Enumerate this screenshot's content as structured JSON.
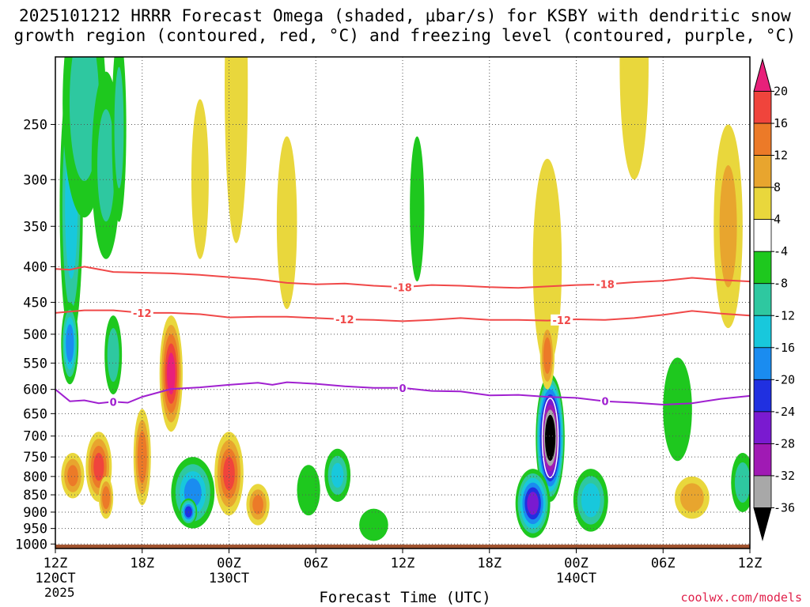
{
  "chart_data": {
    "type": "heatmap",
    "title_line1": "2025101212 HRRR Forecast Omega (shaded, μbar/s) for KSBY with dendritic snow",
    "title_line2": "growth region (contoured, red, °C) and freezing level (contoured, purple, °C)",
    "xlabel": "Forecast Time (UTC)",
    "ylabel": "",
    "x_ticks": [
      "12Z",
      "18Z",
      "00Z",
      "06Z",
      "12Z",
      "18Z",
      "00Z",
      "06Z",
      "12Z"
    ],
    "x_date_labels": [
      {
        "tick_index": 0,
        "label": "120CT"
      },
      {
        "tick_index": 2,
        "label": "130CT"
      },
      {
        "tick_index": 6,
        "label": "140CT"
      }
    ],
    "year_label": "2025",
    "x_range_hours": [
      0,
      48
    ],
    "y_ticks": [
      250,
      300,
      350,
      400,
      450,
      500,
      550,
      600,
      650,
      700,
      750,
      800,
      850,
      900,
      950,
      1000
    ],
    "y_range_hPa": [
      1015,
      200
    ],
    "colorbar": {
      "units": "μbar/s",
      "labels": [
        "20",
        "16",
        "12",
        "8",
        "4",
        "-4",
        "-8",
        "-12",
        "-16",
        "-20",
        "-24",
        "-28",
        "-32",
        "-36"
      ],
      "bins": [
        {
          "range": [
            20,
            99
          ],
          "color": "#e8207a"
        },
        {
          "range": [
            16,
            20
          ],
          "color": "#f0443c"
        },
        {
          "range": [
            12,
            16
          ],
          "color": "#ec7a28"
        },
        {
          "range": [
            8,
            12
          ],
          "color": "#e8a52e"
        },
        {
          "range": [
            4,
            8
          ],
          "color": "#e9d73c"
        },
        {
          "range": [
            -4,
            4
          ],
          "color": "#ffffff"
        },
        {
          "range": [
            -8,
            -4
          ],
          "color": "#1ec81e"
        },
        {
          "range": [
            -12,
            -8
          ],
          "color": "#2ec8a0"
        },
        {
          "range": [
            -16,
            -12
          ],
          "color": "#18c8dc"
        },
        {
          "range": [
            -20,
            -16
          ],
          "color": "#1a8cf0"
        },
        {
          "range": [
            -24,
            -20
          ],
          "color": "#2030e0"
        },
        {
          "range": [
            -28,
            -24
          ],
          "color": "#7a1ad0"
        },
        {
          "range": [
            -32,
            -28
          ],
          "color": "#a01ab4"
        },
        {
          "range": [
            -36,
            -32
          ],
          "color": "#a8a8a8"
        },
        {
          "range": [
            -99,
            -36
          ],
          "color": "#000000"
        }
      ]
    },
    "contours": [
      {
        "name": "-18 C isotherm",
        "label": "-18",
        "color": "#f04848",
        "points": [
          [
            0,
            403
          ],
          [
            1,
            404
          ],
          [
            2,
            400
          ],
          [
            4,
            407
          ],
          [
            6,
            408
          ],
          [
            8,
            409
          ],
          [
            10,
            411
          ],
          [
            12,
            414
          ],
          [
            14,
            417
          ],
          [
            16,
            422
          ],
          [
            18,
            424
          ],
          [
            20,
            423
          ],
          [
            22,
            426
          ],
          [
            24,
            428
          ],
          [
            26,
            425
          ],
          [
            28,
            426
          ],
          [
            30,
            428
          ],
          [
            32,
            429
          ],
          [
            34,
            427
          ],
          [
            36,
            425
          ],
          [
            38,
            424
          ],
          [
            40,
            421
          ],
          [
            42,
            419
          ],
          [
            44,
            415
          ],
          [
            46,
            418
          ],
          [
            48,
            420
          ]
        ],
        "label_at_hours": [
          24,
          38
        ]
      },
      {
        "name": "-12 C isotherm",
        "label": "-12",
        "color": "#f04848",
        "points": [
          [
            0,
            466
          ],
          [
            2,
            462
          ],
          [
            4,
            462
          ],
          [
            6,
            466
          ],
          [
            8,
            466
          ],
          [
            10,
            468
          ],
          [
            12,
            473
          ],
          [
            14,
            472
          ],
          [
            16,
            472
          ],
          [
            18,
            474
          ],
          [
            20,
            476
          ],
          [
            22,
            477
          ],
          [
            24,
            479
          ],
          [
            26,
            477
          ],
          [
            28,
            474
          ],
          [
            30,
            477
          ],
          [
            32,
            477
          ],
          [
            34,
            478
          ],
          [
            36,
            476
          ],
          [
            38,
            477
          ],
          [
            40,
            474
          ],
          [
            42,
            469
          ],
          [
            44,
            463
          ],
          [
            46,
            467
          ],
          [
            48,
            470
          ]
        ],
        "label_at_hours": [
          6,
          20,
          35
        ]
      },
      {
        "name": "0 C freezing level",
        "label": "0",
        "color": "#a020d0",
        "points": [
          [
            0,
            600
          ],
          [
            1,
            624
          ],
          [
            2,
            622
          ],
          [
            3,
            628
          ],
          [
            4,
            625
          ],
          [
            5,
            627
          ],
          [
            6,
            615
          ],
          [
            8,
            599
          ],
          [
            10,
            596
          ],
          [
            12,
            591
          ],
          [
            14,
            587
          ],
          [
            15,
            591
          ],
          [
            16,
            586
          ],
          [
            18,
            589
          ],
          [
            20,
            594
          ],
          [
            22,
            597
          ],
          [
            24,
            597
          ],
          [
            26,
            603
          ],
          [
            28,
            604
          ],
          [
            30,
            612
          ],
          [
            32,
            611
          ],
          [
            34,
            615
          ],
          [
            36,
            617
          ],
          [
            38,
            624
          ],
          [
            40,
            627
          ],
          [
            42,
            631
          ],
          [
            44,
            628
          ],
          [
            46,
            619
          ],
          [
            48,
            613
          ]
        ],
        "label_at_hours": [
          4,
          24,
          38
        ]
      }
    ],
    "omega_blobs": [
      {
        "h": 1.1,
        "p": 360,
        "rh": 0.8,
        "rp": 150,
        "v": -14
      },
      {
        "h": 1.0,
        "p": 520,
        "rh": 0.6,
        "rp": 70,
        "v": -18
      },
      {
        "h": 2.0,
        "p": 250,
        "rh": 1.5,
        "rp": 90,
        "v": -10
      },
      {
        "h": 3.5,
        "p": 300,
        "rh": 1.0,
        "rp": 90,
        "v": -8
      },
      {
        "h": 4.0,
        "p": 540,
        "rh": 0.6,
        "rp": 70,
        "v": -10
      },
      {
        "h": 4.4,
        "p": 265,
        "rh": 0.5,
        "rp": 80,
        "v": -9
      },
      {
        "h": 1.2,
        "p": 800,
        "rh": 0.8,
        "rp": 60,
        "v": 12
      },
      {
        "h": 3.0,
        "p": 780,
        "rh": 0.9,
        "rp": 90,
        "v": 16
      },
      {
        "h": 3.5,
        "p": 860,
        "rh": 0.5,
        "rp": 60,
        "v": 14
      },
      {
        "h": 6.0,
        "p": 760,
        "rh": 0.6,
        "rp": 120,
        "v": 14
      },
      {
        "h": 8.0,
        "p": 580,
        "rh": 0.8,
        "rp": 110,
        "v": 20
      },
      {
        "h": 9.5,
        "p": 850,
        "rh": 1.5,
        "rp": 100,
        "v": -16
      },
      {
        "h": 9.2,
        "p": 900,
        "rh": 0.6,
        "rp": 40,
        "v": -22
      },
      {
        "h": 12.0,
        "p": 800,
        "rh": 1.0,
        "rp": 110,
        "v": 16
      },
      {
        "h": 14.0,
        "p": 880,
        "rh": 0.8,
        "rp": 60,
        "v": 12
      },
      {
        "h": 10.0,
        "p": 310,
        "rh": 0.6,
        "rp": 80,
        "v": 6
      },
      {
        "h": 12.5,
        "p": 250,
        "rh": 0.8,
        "rp": 120,
        "v": 6
      },
      {
        "h": 16.0,
        "p": 360,
        "rh": 0.7,
        "rp": 100,
        "v": 6
      },
      {
        "h": 19.5,
        "p": 800,
        "rh": 0.9,
        "rp": 70,
        "v": -12
      },
      {
        "h": 17.5,
        "p": 840,
        "rh": 0.8,
        "rp": 70,
        "v": -6
      },
      {
        "h": 22.0,
        "p": 940,
        "rh": 1.0,
        "rp": 50,
        "v": -6
      },
      {
        "h": 25.0,
        "p": 340,
        "rh": 0.5,
        "rp": 80,
        "v": -6
      },
      {
        "h": 34.2,
        "p": 720,
        "rh": 1.0,
        "rp": 150,
        "v": -40
      },
      {
        "h": 33.0,
        "p": 880,
        "rh": 1.2,
        "rp": 100,
        "v": -24
      },
      {
        "h": 34.0,
        "p": 420,
        "rh": 1.0,
        "rp": 140,
        "v": 6
      },
      {
        "h": 34.0,
        "p": 540,
        "rh": 0.5,
        "rp": 60,
        "v": 14
      },
      {
        "h": 37.0,
        "p": 870,
        "rh": 1.2,
        "rp": 90,
        "v": -14
      },
      {
        "h": 40.0,
        "p": 220,
        "rh": 1.0,
        "rp": 80,
        "v": 6
      },
      {
        "h": 43.0,
        "p": 650,
        "rh": 1.0,
        "rp": 110,
        "v": -6
      },
      {
        "h": 44.0,
        "p": 860,
        "rh": 1.2,
        "rp": 60,
        "v": 10
      },
      {
        "h": 46.5,
        "p": 370,
        "rh": 1.0,
        "rp": 120,
        "v": 8
      },
      {
        "h": 47.5,
        "p": 820,
        "rh": 0.8,
        "rp": 80,
        "v": -10
      }
    ]
  },
  "credit": "coolwx.com/models"
}
